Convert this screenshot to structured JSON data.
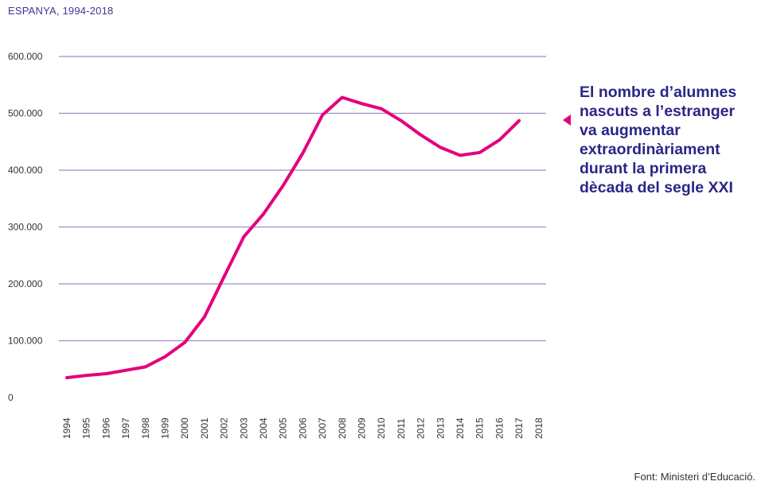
{
  "subtitle": "ESPANYA, 1994-2018",
  "annotation": [
    "El nombre d’alumnes",
    "nascuts a l’estranger",
    "va augmentar",
    "extraordinàriament",
    "durant la primera",
    "dècada del segle XXI"
  ],
  "source": "Font: Ministeri d’Educació.",
  "colors": {
    "line": "#e4007c",
    "grid": "#9890c8",
    "text_dark": "#2b2686"
  },
  "chart_data": {
    "type": "line",
    "title": "",
    "subtitle": "ESPANYA, 1994-2018",
    "xlabel": "",
    "ylabel": "",
    "x": [
      "1994",
      "1995",
      "1996",
      "1997",
      "1998",
      "1999",
      "2000",
      "2001",
      "2002",
      "2003",
      "2004",
      "2005",
      "2006",
      "2007",
      "2008",
      "2009",
      "2010",
      "2011",
      "2012",
      "2013",
      "2014",
      "2015",
      "2016",
      "2017",
      "2018"
    ],
    "y_tick_labels": [
      "0",
      "100.000",
      "200.000",
      "300.000",
      "400.000",
      "500.000",
      "600.000"
    ],
    "y_ticks": [
      0,
      100000,
      200000,
      300000,
      400000,
      500000,
      600000
    ],
    "ylim": [
      0,
      600000
    ],
    "grid": true,
    "series": [
      {
        "values": [
          35000,
          39000,
          42000,
          48000,
          54000,
          72000,
          97000,
          142000,
          213000,
          283000,
          323000,
          373000,
          430000,
          497000,
          528000,
          517000,
          508000,
          487000,
          462000,
          440000,
          426000,
          431000,
          453000,
          487000,
          null
        ]
      }
    ]
  }
}
